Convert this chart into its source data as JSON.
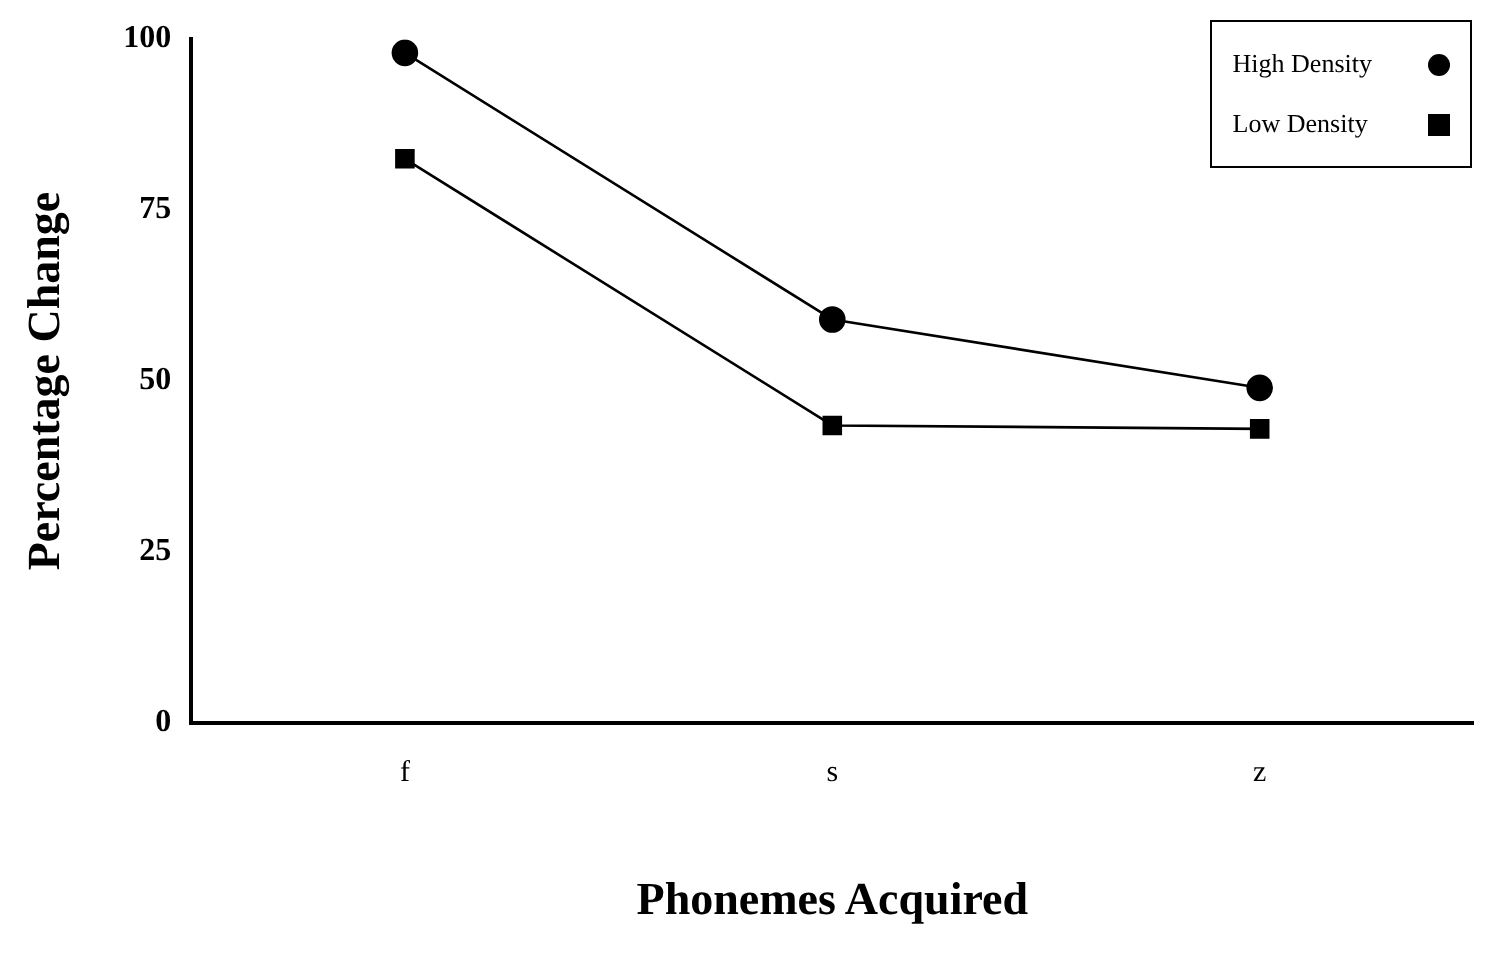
{
  "chart_data": {
    "type": "line",
    "xlabel": "Phonemes Acquired",
    "ylabel": "Percentage Change",
    "categories": [
      "f",
      "s",
      "z"
    ],
    "series": [
      {
        "name": "High Density",
        "color": "#000000",
        "marker": "circle",
        "values": [
          98,
          59,
          49
        ]
      },
      {
        "name": "Low Density",
        "color": "#000000",
        "marker": "square",
        "values": [
          82.5,
          43.5,
          43
        ]
      }
    ],
    "ylim": [
      0,
      100
    ],
    "yticks": [
      0,
      25,
      50,
      75,
      100
    ],
    "grid": false,
    "legend": "top right",
    "line_style": "solid"
  }
}
